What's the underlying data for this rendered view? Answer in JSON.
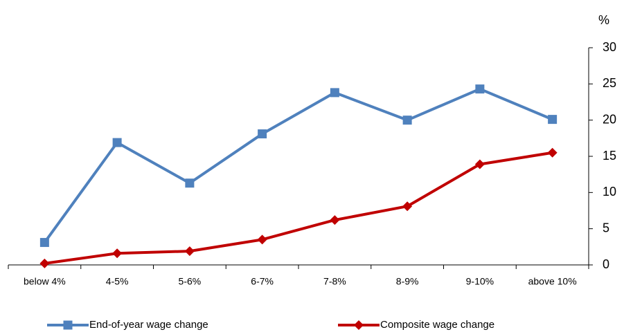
{
  "chart_data": {
    "type": "line",
    "y_axis_label": "%",
    "categories": [
      "below 4%",
      "4-5%",
      "5-6%",
      "6-7%",
      "7-8%",
      "8-9%",
      "9-10%",
      "above 10%"
    ],
    "series": [
      {
        "name": "End-of-year wage change",
        "color": "#4f81bd",
        "marker": "square",
        "values": [
          3.1,
          16.9,
          11.3,
          18.1,
          23.8,
          20.0,
          24.3,
          20.1
        ]
      },
      {
        "name": "Composite wage change",
        "color": "#c00000",
        "marker": "diamond",
        "values": [
          0.2,
          1.6,
          1.9,
          3.5,
          6.2,
          8.1,
          13.9,
          15.5
        ]
      }
    ],
    "ylim": [
      0,
      30
    ],
    "yticks": [
      0,
      5,
      10,
      15,
      20,
      25,
      30
    ],
    "y_axis_side": "right",
    "grid": false,
    "legend": "bottom"
  }
}
